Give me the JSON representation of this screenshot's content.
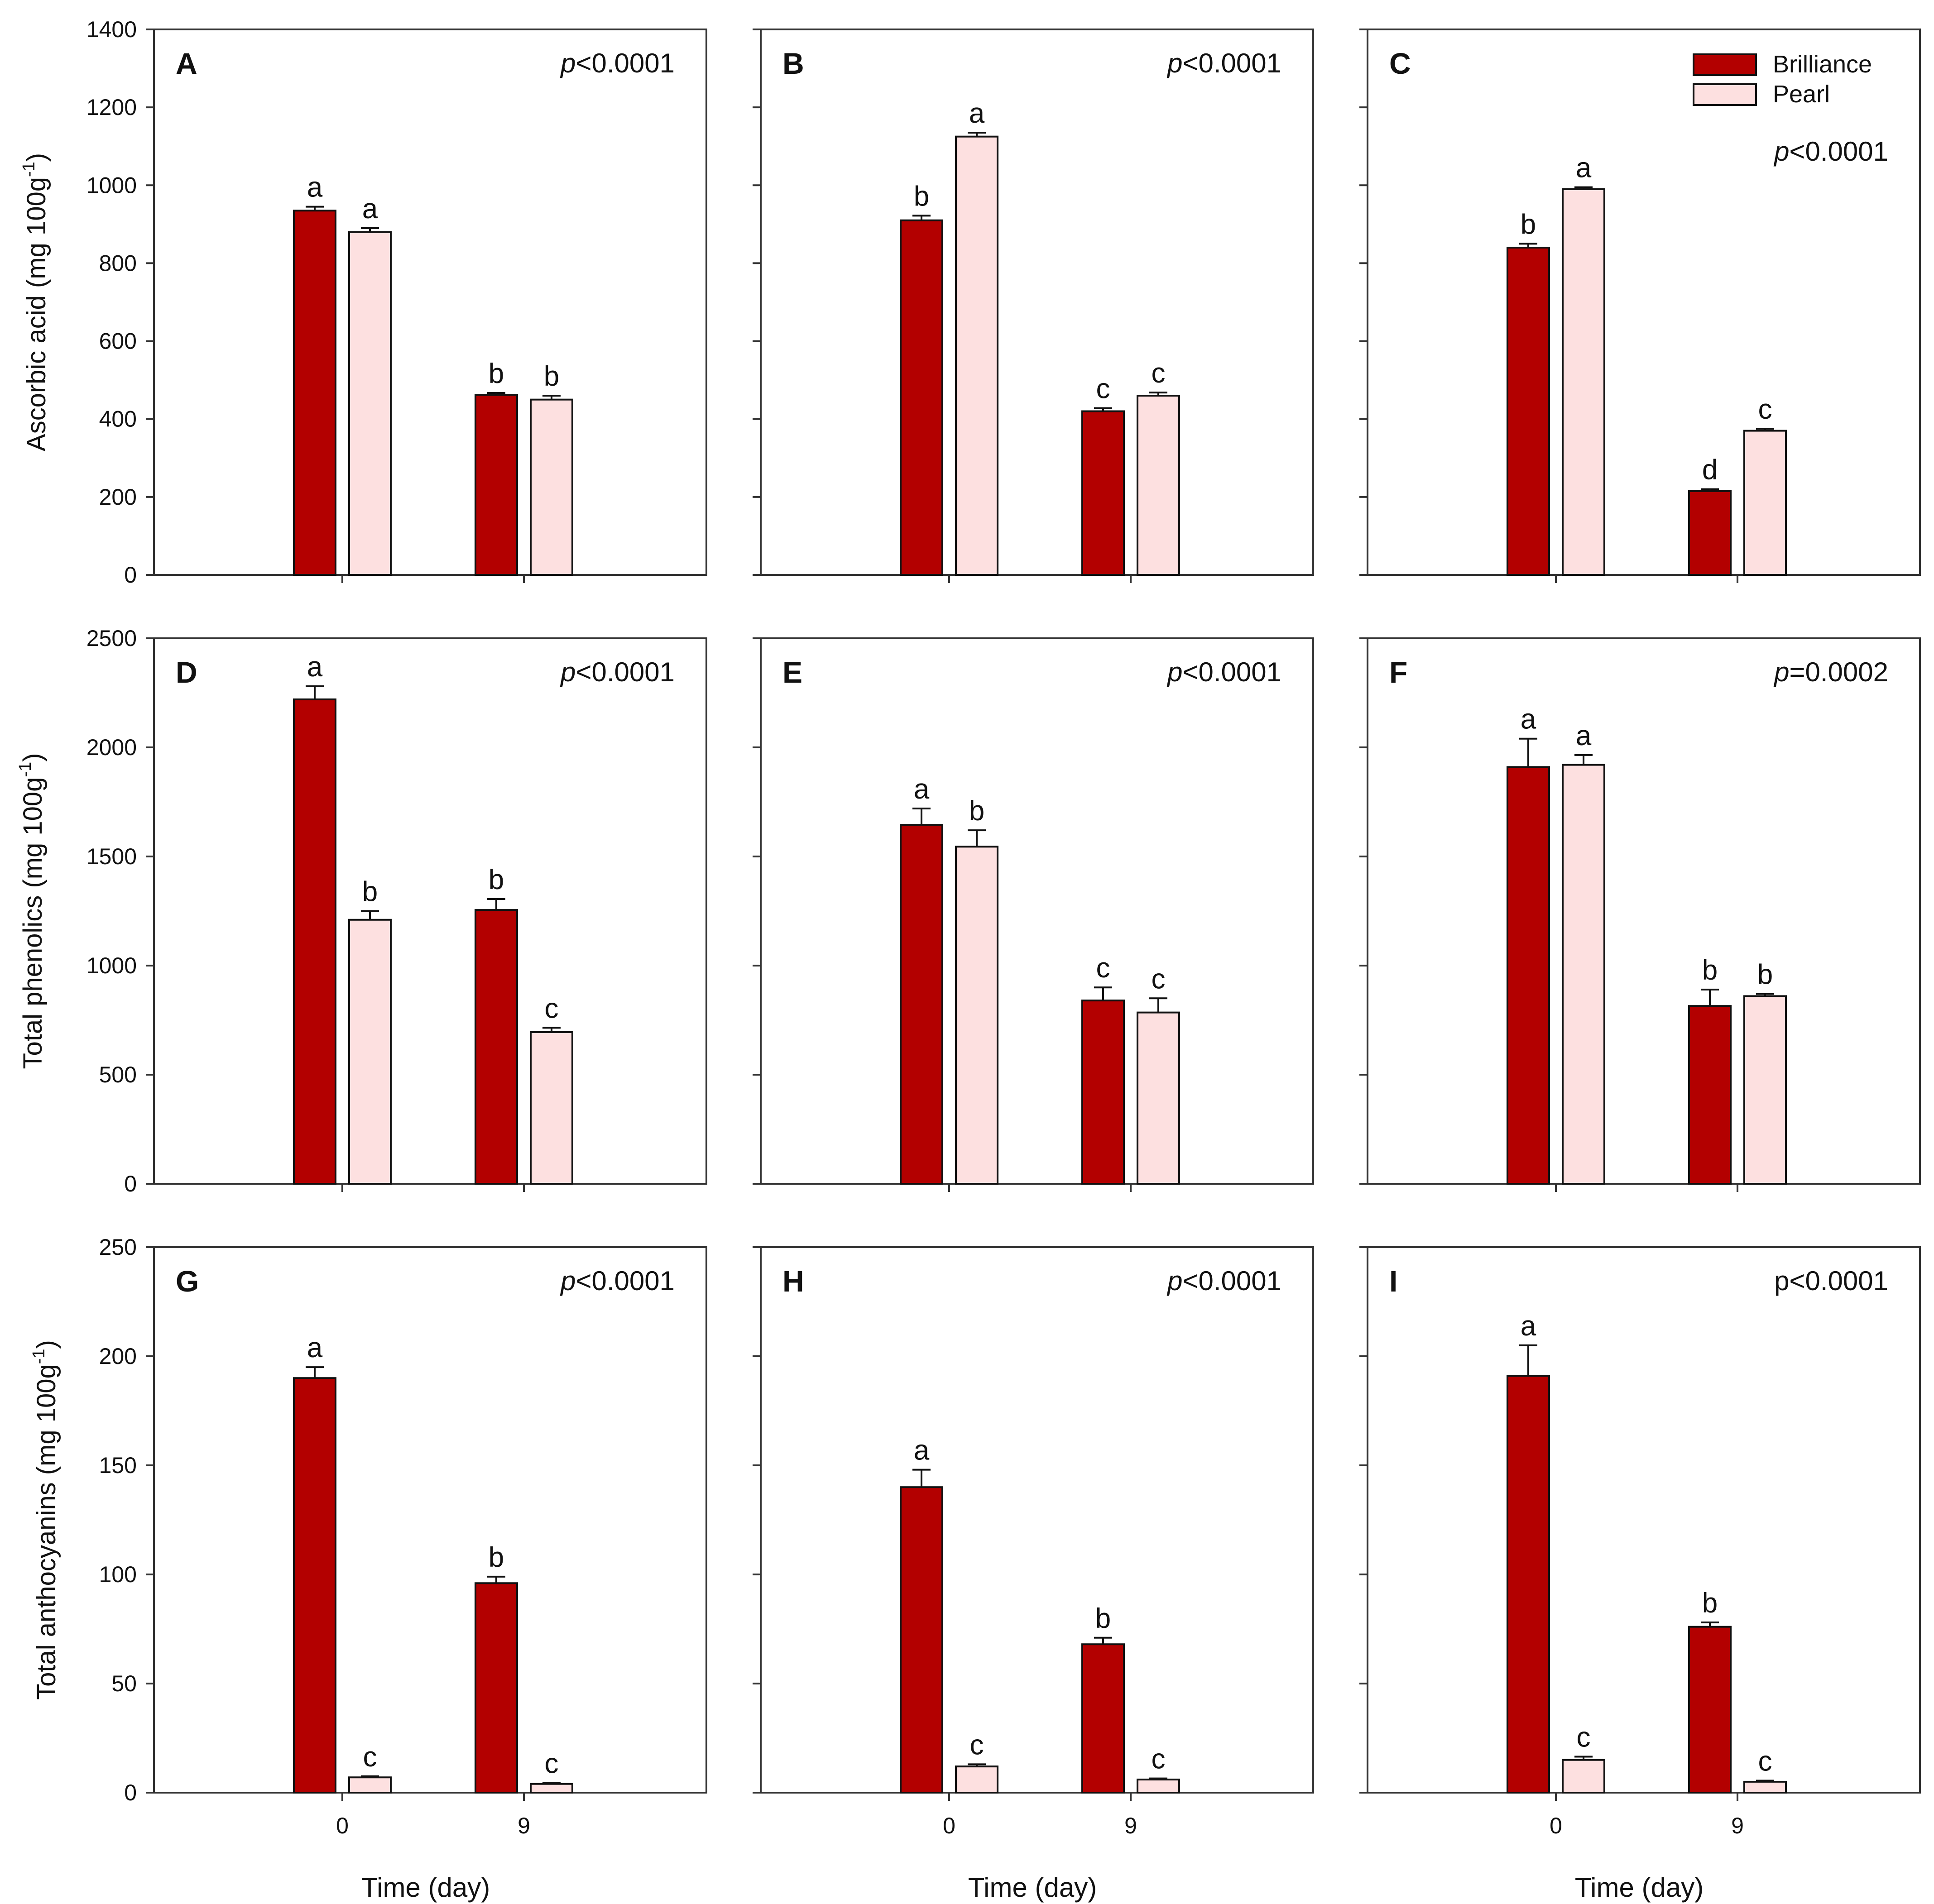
{
  "legend": {
    "series": [
      "Brilliance",
      "Pearl"
    ]
  },
  "colors": {
    "Brilliance": "#b30000",
    "Pearl": "#fde0e0",
    "axis": "#333333",
    "bar_stroke": "#111111"
  },
  "xlabel": "Time (day)",
  "row_labels": {
    "ascorbic": {
      "main": "Ascorbic acid (mg 100g",
      "sup": "-1",
      "end": ")"
    },
    "phenolics": {
      "main": "Total phenolics (mg 100g",
      "sup": "-1",
      "end": ")"
    },
    "anthocyanins": {
      "main": "Total anthocyanins (mg 100g",
      "sup": "-1",
      "end": ")"
    }
  },
  "chart_data": [
    {
      "panel": "A",
      "type": "bar",
      "measure": "ascorbic",
      "row": 0,
      "col": 0,
      "ylim": [
        0,
        1400
      ],
      "yticks": [
        0,
        200,
        400,
        600,
        800,
        1000,
        1200,
        1400
      ],
      "show_ytick_labels": true,
      "categories": [
        "0",
        "9"
      ],
      "stat": {
        "italic": "p",
        "rest": "<0.0001"
      },
      "series": [
        {
          "name": "Brilliance",
          "values": [
            935,
            462
          ],
          "errors": [
            10,
            5
          ],
          "letters": [
            "a",
            "b"
          ]
        },
        {
          "name": "Pearl",
          "values": [
            880,
            450
          ],
          "errors": [
            10,
            10
          ],
          "letters": [
            "a",
            "b"
          ]
        }
      ]
    },
    {
      "panel": "B",
      "type": "bar",
      "measure": "ascorbic",
      "row": 0,
      "col": 1,
      "ylim": [
        0,
        1400
      ],
      "yticks": [
        0,
        200,
        400,
        600,
        800,
        1000,
        1200,
        1400
      ],
      "show_ytick_labels": false,
      "categories": [
        "0",
        "9"
      ],
      "stat": {
        "italic": "p",
        "rest": "<0.0001"
      },
      "series": [
        {
          "name": "Brilliance",
          "values": [
            910,
            420
          ],
          "errors": [
            12,
            8
          ],
          "letters": [
            "b",
            "c"
          ]
        },
        {
          "name": "Pearl",
          "values": [
            1125,
            460
          ],
          "errors": [
            10,
            8
          ],
          "letters": [
            "a",
            "c"
          ]
        }
      ]
    },
    {
      "panel": "C",
      "type": "bar",
      "measure": "ascorbic",
      "row": 0,
      "col": 2,
      "ylim": [
        0,
        1400
      ],
      "yticks": [
        0,
        200,
        400,
        600,
        800,
        1000,
        1200,
        1400
      ],
      "show_ytick_labels": false,
      "categories": [
        "0",
        "9"
      ],
      "stat": {
        "italic": "p",
        "rest": "<0.0001"
      },
      "series": [
        {
          "name": "Brilliance",
          "values": [
            840,
            215
          ],
          "errors": [
            10,
            5
          ],
          "letters": [
            "b",
            "d"
          ]
        },
        {
          "name": "Pearl",
          "values": [
            990,
            370
          ],
          "errors": [
            5,
            5
          ],
          "letters": [
            "a",
            "c"
          ]
        }
      ]
    },
    {
      "panel": "D",
      "type": "bar",
      "measure": "phenolics",
      "row": 1,
      "col": 0,
      "ylim": [
        0,
        2500
      ],
      "yticks": [
        0,
        500,
        1000,
        1500,
        2000,
        2500
      ],
      "show_ytick_labels": true,
      "categories": [
        "0",
        "9"
      ],
      "stat": {
        "italic": "p",
        "rest": "<0.0001"
      },
      "series": [
        {
          "name": "Brilliance",
          "values": [
            2220,
            1255
          ],
          "errors": [
            60,
            50
          ],
          "letters": [
            "a",
            "b"
          ]
        },
        {
          "name": "Pearl",
          "values": [
            1210,
            695
          ],
          "errors": [
            40,
            20
          ],
          "letters": [
            "b",
            "c"
          ]
        }
      ]
    },
    {
      "panel": "E",
      "type": "bar",
      "measure": "phenolics",
      "row": 1,
      "col": 1,
      "ylim": [
        0,
        2500
      ],
      "yticks": [
        0,
        500,
        1000,
        1500,
        2000,
        2500
      ],
      "show_ytick_labels": false,
      "categories": [
        "0",
        "9"
      ],
      "stat": {
        "italic": "p",
        "rest": "<0.0001"
      },
      "series": [
        {
          "name": "Brilliance",
          "values": [
            1645,
            840
          ],
          "errors": [
            75,
            60
          ],
          "letters": [
            "a",
            "c"
          ]
        },
        {
          "name": "Pearl",
          "values": [
            1545,
            785
          ],
          "errors": [
            75,
            65
          ],
          "letters": [
            "b",
            "c"
          ]
        }
      ]
    },
    {
      "panel": "F",
      "type": "bar",
      "measure": "phenolics",
      "row": 1,
      "col": 2,
      "ylim": [
        0,
        2500
      ],
      "yticks": [
        0,
        500,
        1000,
        1500,
        2000,
        2500
      ],
      "show_ytick_labels": false,
      "categories": [
        "0",
        "9"
      ],
      "stat": {
        "italic": "p",
        "rest": "=0.0002"
      },
      "series": [
        {
          "name": "Brilliance",
          "values": [
            1910,
            815
          ],
          "errors": [
            130,
            75
          ],
          "letters": [
            "a",
            "b"
          ]
        },
        {
          "name": "Pearl",
          "values": [
            1920,
            860
          ],
          "errors": [
            45,
            10
          ],
          "letters": [
            "a",
            "b"
          ]
        }
      ]
    },
    {
      "panel": "G",
      "type": "bar",
      "measure": "anthocyanins",
      "row": 2,
      "col": 0,
      "ylim": [
        0,
        250
      ],
      "yticks": [
        0,
        50,
        100,
        150,
        200,
        250
      ],
      "show_ytick_labels": true,
      "categories": [
        "0",
        "9"
      ],
      "stat": {
        "italic": "p",
        "rest": "<0.0001"
      },
      "series": [
        {
          "name": "Brilliance",
          "values": [
            190,
            96
          ],
          "errors": [
            5,
            3
          ],
          "letters": [
            "a",
            "b"
          ]
        },
        {
          "name": "Pearl",
          "values": [
            7,
            4
          ],
          "errors": [
            0.5,
            0.5
          ],
          "letters": [
            "c",
            "c"
          ]
        }
      ]
    },
    {
      "panel": "H",
      "type": "bar",
      "measure": "anthocyanins",
      "row": 2,
      "col": 1,
      "ylim": [
        0,
        250
      ],
      "yticks": [
        0,
        50,
        100,
        150,
        200,
        250
      ],
      "show_ytick_labels": false,
      "categories": [
        "0",
        "9"
      ],
      "stat": {
        "italic": "p",
        "rest": "<0.0001"
      },
      "series": [
        {
          "name": "Brilliance",
          "values": [
            140,
            68
          ],
          "errors": [
            8,
            3
          ],
          "letters": [
            "a",
            "b"
          ]
        },
        {
          "name": "Pearl",
          "values": [
            12,
            6
          ],
          "errors": [
            1,
            0.5
          ],
          "letters": [
            "c",
            "c"
          ]
        }
      ]
    },
    {
      "panel": "I",
      "type": "bar",
      "measure": "anthocyanins",
      "row": 2,
      "col": 2,
      "ylim": [
        0,
        250
      ],
      "yticks": [
        0,
        50,
        100,
        150,
        200,
        250
      ],
      "show_ytick_labels": false,
      "categories": [
        "0",
        "9"
      ],
      "stat": {
        "italic": "",
        "rest": "p<0.0001"
      },
      "series": [
        {
          "name": "Brilliance",
          "values": [
            191,
            76
          ],
          "errors": [
            14,
            2
          ],
          "letters": [
            "a",
            "b"
          ]
        },
        {
          "name": "Pearl",
          "values": [
            15,
            5
          ],
          "errors": [
            1.5,
            0.5
          ],
          "letters": [
            "c",
            "c"
          ]
        }
      ]
    }
  ]
}
